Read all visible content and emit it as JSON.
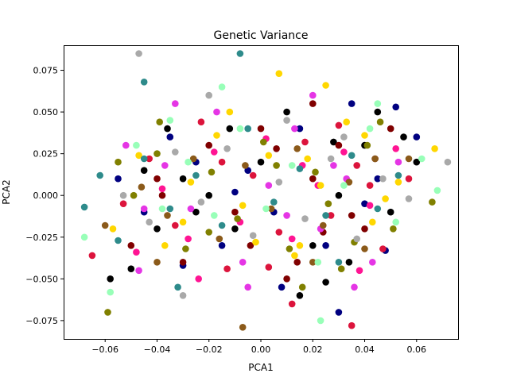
{
  "chart_data": {
    "type": "scatter",
    "title": "Genetic Variance",
    "xlabel": "PCA1",
    "ylabel": "PCA2",
    "xlim": [
      -0.076,
      0.076
    ],
    "ylim": [
      -0.086,
      0.09
    ],
    "x_ticks": [
      -0.06,
      -0.04,
      -0.02,
      0.0,
      0.02,
      0.04,
      0.06
    ],
    "x_tick_labels": [
      "−0.06",
      "−0.04",
      "−0.02",
      "0.00",
      "0.02",
      "0.04",
      "0.06"
    ],
    "y_ticks": [
      -0.075,
      -0.05,
      -0.025,
      0.0,
      0.025,
      0.05,
      0.075
    ],
    "y_tick_labels": [
      "−0.075",
      "−0.050",
      "−0.025",
      "0.000",
      "0.025",
      "0.050",
      "0.075"
    ],
    "grid": false,
    "legend": "none",
    "colors": [
      "#000000",
      "#000080",
      "#800000",
      "#dc143c",
      "#ff1493",
      "#e535e5",
      "#ffd700",
      "#808000",
      "#8b5a1a",
      "#2e8b8b",
      "#a9a9a9",
      "#98ffb8"
    ],
    "series": [
      {
        "color": "#000000",
        "points": [
          [
            -0.058,
            -0.05
          ],
          [
            -0.05,
            -0.044
          ],
          [
            -0.04,
            -0.02
          ],
          [
            -0.03,
            0.01
          ],
          [
            -0.036,
            0.04
          ],
          [
            -0.02,
            0.0
          ],
          [
            -0.01,
            -0.02
          ],
          [
            0.0,
            0.02
          ],
          [
            0.01,
            0.05
          ],
          [
            0.02,
            -0.03
          ],
          [
            0.03,
            0.0
          ],
          [
            0.04,
            0.03
          ],
          [
            0.05,
            -0.01
          ],
          [
            0.06,
            0.02
          ],
          [
            -0.045,
            0.015
          ],
          [
            0.015,
            -0.06
          ],
          [
            0.025,
            -0.052
          ],
          [
            0.034,
            -0.04
          ],
          [
            0.045,
            0.05
          ],
          [
            -0.012,
            0.04
          ],
          [
            0.028,
            0.032
          ],
          [
            0.055,
            0.035
          ],
          [
            -0.025,
            -0.01
          ]
        ]
      },
      {
        "color": "#000080",
        "points": [
          [
            -0.055,
            0.01
          ],
          [
            -0.045,
            -0.01
          ],
          [
            -0.035,
            0.035
          ],
          [
            -0.025,
            0.02
          ],
          [
            -0.015,
            -0.03
          ],
          [
            0.005,
            -0.01
          ],
          [
            0.015,
            0.04
          ],
          [
            0.025,
            -0.03
          ],
          [
            0.035,
            0.055
          ],
          [
            0.045,
            0.01
          ],
          [
            0.06,
            0.035
          ],
          [
            0.048,
            -0.033
          ],
          [
            -0.01,
            0.002
          ],
          [
            0.04,
            -0.005
          ],
          [
            0.008,
            -0.055
          ],
          [
            0.052,
            0.053
          ],
          [
            -0.005,
            0.015
          ],
          [
            -0.03,
            -0.042
          ],
          [
            0.03,
            -0.07
          ]
        ]
      },
      {
        "color": "#800000",
        "points": [
          [
            -0.05,
            -0.03
          ],
          [
            -0.04,
            0.01
          ],
          [
            -0.03,
            -0.04
          ],
          [
            -0.02,
            0.03
          ],
          [
            -0.01,
            -0.01
          ],
          [
            0.0,
            0.04
          ],
          [
            0.01,
            -0.05
          ],
          [
            0.02,
            0.01
          ],
          [
            0.03,
            0.03
          ],
          [
            0.04,
            -0.02
          ],
          [
            0.05,
            0.04
          ],
          [
            0.02,
            0.055
          ],
          [
            -0.038,
            0.0
          ],
          [
            0.014,
            -0.04
          ],
          [
            0.044,
            0.022
          ],
          [
            0.006,
            0.028
          ],
          [
            -0.004,
            -0.03
          ],
          [
            0.024,
            -0.022
          ],
          [
            0.035,
            -0.012
          ]
        ]
      },
      {
        "color": "#dc143c",
        "points": [
          [
            -0.065,
            -0.036
          ],
          [
            -0.043,
            0.022
          ],
          [
            -0.033,
            -0.018
          ],
          [
            -0.023,
            0.044
          ],
          [
            -0.013,
            -0.044
          ],
          [
            -0.003,
            0.012
          ],
          [
            0.007,
            -0.022
          ],
          [
            0.017,
            0.032
          ],
          [
            0.027,
            -0.012
          ],
          [
            0.037,
            0.018
          ],
          [
            0.047,
            -0.032
          ],
          [
            0.057,
            0.01
          ],
          [
            -0.053,
            -0.005
          ],
          [
            0.012,
            -0.065
          ],
          [
            0.03,
            0.042
          ],
          [
            0.035,
            -0.078
          ],
          [
            0.042,
            0.006
          ],
          [
            -0.015,
            0.02
          ],
          [
            0.003,
            -0.043
          ]
        ]
      },
      {
        "color": "#ff1493",
        "points": [
          [
            -0.048,
            -0.034
          ],
          [
            -0.038,
            0.004
          ],
          [
            -0.028,
            -0.026
          ],
          [
            -0.018,
            0.026
          ],
          [
            -0.008,
            -0.016
          ],
          [
            0.002,
            0.034
          ],
          [
            0.012,
            -0.026
          ],
          [
            0.022,
            0.006
          ],
          [
            0.032,
            0.026
          ],
          [
            0.042,
            -0.006
          ],
          [
            0.052,
            0.028
          ],
          [
            -0.024,
            -0.05
          ],
          [
            0.016,
            0.018
          ],
          [
            0.038,
            -0.045
          ]
        ]
      },
      {
        "color": "#e535e5",
        "points": [
          [
            -0.047,
            -0.045
          ],
          [
            -0.037,
            0.018
          ],
          [
            -0.027,
            -0.008
          ],
          [
            -0.017,
            0.05
          ],
          [
            -0.007,
            -0.04
          ],
          [
            0.003,
            0.006
          ],
          [
            0.013,
            0.04
          ],
          [
            0.023,
            -0.02
          ],
          [
            0.033,
            0.01
          ],
          [
            0.043,
            -0.04
          ],
          [
            0.053,
            0.02
          ],
          [
            -0.052,
            0.03
          ],
          [
            -0.005,
            -0.055
          ],
          [
            0.036,
            -0.055
          ],
          [
            0.02,
            0.06
          ],
          [
            -0.045,
            -0.008
          ],
          [
            0.01,
            -0.012
          ],
          [
            0.028,
            0.018
          ],
          [
            -0.033,
            0.055
          ]
        ]
      },
      {
        "color": "#ffd700",
        "points": [
          [
            -0.057,
            -0.02
          ],
          [
            -0.047,
            0.024
          ],
          [
            -0.037,
            -0.03
          ],
          [
            -0.027,
            0.008
          ],
          [
            -0.017,
            0.036
          ],
          [
            -0.007,
            -0.006
          ],
          [
            0.003,
            0.024
          ],
          [
            0.013,
            -0.036
          ],
          [
            0.023,
            0.006
          ],
          [
            0.033,
            0.044
          ],
          [
            0.043,
            -0.016
          ],
          [
            0.053,
            0.008
          ],
          [
            0.067,
            0.028
          ],
          [
            0.007,
            0.073
          ],
          [
            0.025,
            0.066
          ],
          [
            -0.012,
            0.05
          ],
          [
            0.015,
            -0.03
          ],
          [
            0.04,
            0.036
          ],
          [
            -0.03,
            -0.016
          ],
          [
            0.018,
            0.022
          ],
          [
            0.048,
            -0.002
          ],
          [
            -0.002,
            -0.028
          ]
        ]
      },
      {
        "color": "#808000",
        "points": [
          [
            -0.059,
            -0.07
          ],
          [
            -0.049,
            0.0
          ],
          [
            -0.039,
            0.044
          ],
          [
            -0.029,
            -0.032
          ],
          [
            -0.019,
            0.014
          ],
          [
            -0.009,
            -0.014
          ],
          [
            0.001,
            0.032
          ],
          [
            0.011,
            -0.032
          ],
          [
            0.021,
            0.014
          ],
          [
            0.031,
            -0.044
          ],
          [
            0.041,
            0.03
          ],
          [
            0.051,
            -0.02
          ],
          [
            0.066,
            -0.004
          ],
          [
            -0.04,
            0.025
          ],
          [
            0.006,
            0.018
          ],
          [
            0.026,
            -0.005
          ],
          [
            0.046,
            0.044
          ],
          [
            -0.02,
            -0.022
          ],
          [
            0.036,
            -0.028
          ],
          [
            -0.055,
            0.02
          ],
          [
            0.016,
            -0.055
          ]
        ]
      },
      {
        "color": "#8b5a1a",
        "points": [
          [
            -0.06,
            -0.018
          ],
          [
            -0.046,
            0.005
          ],
          [
            -0.036,
            -0.012
          ],
          [
            -0.026,
            0.022
          ],
          [
            -0.016,
            -0.026
          ],
          [
            -0.006,
            0.018
          ],
          [
            0.004,
            -0.008
          ],
          [
            0.014,
            0.028
          ],
          [
            0.024,
            -0.018
          ],
          [
            0.034,
            0.008
          ],
          [
            0.044,
            0.022
          ],
          [
            -0.007,
            -0.079
          ],
          [
            0.057,
            0.022
          ],
          [
            -0.04,
            -0.04
          ],
          [
            0.02,
            -0.04
          ],
          [
            0.04,
            -0.032
          ]
        ]
      },
      {
        "color": "#2e8b8b",
        "points": [
          [
            -0.068,
            -0.007
          ],
          [
            -0.062,
            0.012
          ],
          [
            -0.055,
            -0.027
          ],
          [
            -0.045,
            0.022
          ],
          [
            -0.035,
            -0.008
          ],
          [
            -0.025,
            0.012
          ],
          [
            -0.015,
            -0.018
          ],
          [
            -0.005,
            0.04
          ],
          [
            0.005,
            -0.004
          ],
          [
            0.015,
            0.016
          ],
          [
            0.025,
            -0.012
          ],
          [
            0.035,
            0.024
          ],
          [
            0.045,
            -0.008
          ],
          [
            -0.045,
            0.068
          ],
          [
            -0.008,
            0.085
          ],
          [
            0.053,
            0.012
          ],
          [
            -0.032,
            -0.055
          ],
          [
            0.03,
            -0.04
          ]
        ]
      },
      {
        "color": "#a9a9a9",
        "points": [
          [
            -0.047,
            0.085
          ],
          [
            -0.053,
            0.0
          ],
          [
            -0.043,
            -0.016
          ],
          [
            -0.033,
            0.026
          ],
          [
            -0.023,
            -0.004
          ],
          [
            -0.013,
            0.028
          ],
          [
            -0.003,
            -0.024
          ],
          [
            0.007,
            0.008
          ],
          [
            0.017,
            -0.014
          ],
          [
            0.027,
            0.022
          ],
          [
            0.037,
            -0.026
          ],
          [
            0.047,
            0.01
          ],
          [
            0.057,
            -0.002
          ],
          [
            0.072,
            0.02
          ],
          [
            -0.03,
            -0.06
          ],
          [
            0.01,
            0.045
          ],
          [
            -0.02,
            0.06
          ],
          [
            0.032,
            0.035
          ]
        ]
      },
      {
        "color": "#98ffb8",
        "points": [
          [
            -0.068,
            -0.025
          ],
          [
            -0.058,
            -0.058
          ],
          [
            -0.048,
            0.03
          ],
          [
            -0.038,
            -0.008
          ],
          [
            -0.028,
            0.02
          ],
          [
            -0.018,
            -0.012
          ],
          [
            -0.008,
            0.04
          ],
          [
            0.002,
            -0.008
          ],
          [
            0.012,
            0.018
          ],
          [
            0.022,
            -0.04
          ],
          [
            0.032,
            0.006
          ],
          [
            0.042,
            0.04
          ],
          [
            0.052,
            -0.016
          ],
          [
            0.062,
            0.022
          ],
          [
            0.068,
            0.003
          ],
          [
            -0.015,
            0.065
          ],
          [
            0.023,
            -0.075
          ],
          [
            0.045,
            0.055
          ],
          [
            -0.035,
            0.045
          ]
        ]
      }
    ]
  }
}
